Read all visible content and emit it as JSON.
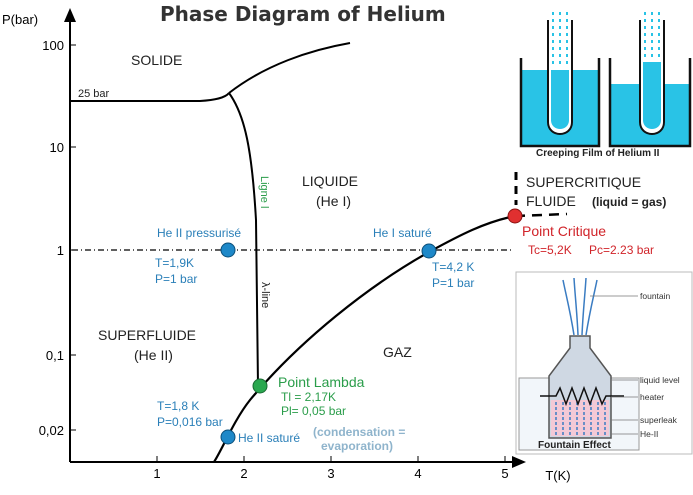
{
  "title": "Phase Diagram of Helium",
  "axes": {
    "y_label": "P(bar)",
    "x_label": "T(K)",
    "y_ticks": [
      "100",
      "10",
      "1",
      "0,1",
      "0,02"
    ],
    "x_ticks": [
      "1",
      "2",
      "3",
      "4",
      "5"
    ]
  },
  "regions": {
    "solid": "SOLIDE",
    "liquid_1": "LIQUIDE",
    "liquid_2": "(He I)",
    "superfluid_1": "SUPERFLUIDE",
    "superfluid_2": "(He II)",
    "gas": "GAZ",
    "supercritical_1": "SUPERCRITIQUE",
    "supercritical_2": "FLUIDE",
    "supercritical_3": "(liquid = gas)"
  },
  "line_labels": {
    "bar25": "25 bar",
    "lambda_line_1": "Ligne l",
    "lambda_line_2": "λ-line"
  },
  "points": {
    "pressurized": {
      "name": "He II pressurisé",
      "t": "T=1,9K",
      "p": "P=1 bar",
      "color": "#1e88c8"
    },
    "saturated_i": {
      "name": "He I saturé",
      "t": "T=4,2 K",
      "p": "P=1 bar",
      "color": "#1e88c8"
    },
    "lambda": {
      "name": "Point Lambda",
      "t": "Tl = 2,17K",
      "p": "Pl= 0,05 bar",
      "color": "#2aa84f"
    },
    "critical": {
      "name": "Point Critique",
      "tc": "Tc=5,2K",
      "pc": "Pc=2.23 bar",
      "color": "#e03030"
    },
    "saturated_ii": {
      "name": "He II saturé",
      "t": "T=1,8 K",
      "p": "P=0,016 bar",
      "color": "#1e88c8"
    }
  },
  "annotation": {
    "line1": "(condensation =",
    "line2": "evaporation)"
  },
  "inset_creeping": {
    "caption": "Creeping Film of Helium II"
  },
  "inset_fountain": {
    "caption": "Fountain Effect",
    "labels": [
      "fountain",
      "liquid level",
      "heater",
      "superleak",
      "He-II"
    ]
  },
  "colors": {
    "liquid": "#29c3e6",
    "blue_text": "#2a7fb8",
    "green": "#2a9d4a",
    "red": "#d1242a"
  }
}
